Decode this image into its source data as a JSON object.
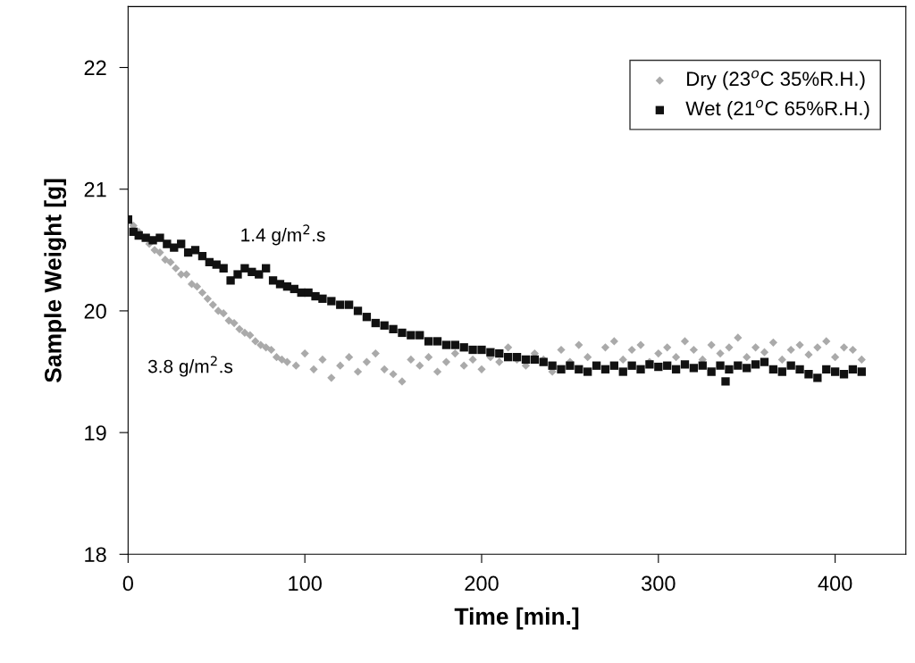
{
  "chart_data": {
    "type": "scatter",
    "xlabel": "Time [min.]",
    "ylabel": "Sample Weight [g]",
    "xlim": [
      0,
      440
    ],
    "xticks": [
      0,
      100,
      200,
      300,
      400
    ],
    "ylim": [
      18,
      22.5
    ],
    "yticks": [
      18,
      19,
      20,
      21,
      22
    ],
    "grid": false,
    "legend": "top right",
    "annotations": [
      "1.4 g/m$^{2}$.s",
      "3.8 g/m$^{2}$.s"
    ],
    "series": [
      {
        "name": "Dry (23$^{o}$C 35%R.H.)",
        "color": "#aaaaaa",
        "marker": "diamond",
        "x": [
          3,
          6,
          12,
          15,
          18,
          21,
          24,
          27,
          30,
          33,
          36,
          39,
          42,
          45,
          48,
          51,
          54,
          57,
          60,
          63,
          66,
          69,
          72,
          75,
          78,
          81,
          84,
          87,
          90,
          95,
          100,
          105,
          110,
          115,
          120,
          125,
          130,
          135,
          140,
          145,
          150,
          155,
          160,
          165,
          170,
          175,
          180,
          185,
          190,
          195,
          200,
          205,
          210,
          215,
          220,
          225,
          230,
          235,
          240,
          245,
          250,
          255,
          260,
          270,
          275,
          280,
          285,
          290,
          295,
          300,
          305,
          310,
          315,
          320,
          325,
          330,
          335,
          340,
          345,
          350,
          355,
          360,
          365,
          370,
          375,
          380,
          385,
          390,
          395,
          400,
          405,
          410,
          415
        ],
        "values": [
          20.7,
          20.65,
          20.55,
          20.5,
          20.48,
          20.42,
          20.4,
          20.35,
          20.3,
          20.3,
          20.22,
          20.2,
          20.15,
          20.1,
          20.05,
          20.0,
          19.98,
          19.92,
          19.9,
          19.85,
          19.82,
          19.8,
          19.75,
          19.72,
          19.7,
          19.68,
          19.62,
          19.6,
          19.58,
          19.55,
          19.65,
          19.52,
          19.6,
          19.45,
          19.55,
          19.62,
          19.5,
          19.58,
          19.65,
          19.52,
          19.48,
          19.42,
          19.6,
          19.55,
          19.62,
          19.5,
          19.58,
          19.65,
          19.55,
          19.6,
          19.52,
          19.62,
          19.58,
          19.7,
          19.6,
          19.55,
          19.65,
          19.6,
          19.5,
          19.68,
          19.58,
          19.72,
          19.62,
          19.7,
          19.75,
          19.6,
          19.68,
          19.72,
          19.58,
          19.65,
          19.7,
          19.62,
          19.75,
          19.68,
          19.6,
          19.72,
          19.65,
          19.7,
          19.78,
          19.62,
          19.7,
          19.66,
          19.74,
          19.6,
          19.68,
          19.72,
          19.64,
          19.7,
          19.75,
          19.62,
          19.7,
          19.68,
          19.6
        ]
      },
      {
        "name": "Wet (21$^{o}$C 65%R.H.)",
        "color": "#111111",
        "marker": "square",
        "x": [
          0,
          3,
          6,
          10,
          14,
          18,
          22,
          26,
          30,
          34,
          38,
          42,
          46,
          50,
          54,
          58,
          62,
          66,
          70,
          74,
          78,
          82,
          86,
          90,
          94,
          98,
          102,
          106,
          110,
          115,
          120,
          125,
          130,
          135,
          140,
          145,
          150,
          155,
          160,
          165,
          170,
          175,
          180,
          185,
          190,
          195,
          200,
          205,
          210,
          215,
          220,
          225,
          230,
          235,
          240,
          245,
          250,
          255,
          260,
          265,
          270,
          275,
          280,
          285,
          290,
          295,
          300,
          305,
          310,
          315,
          320,
          325,
          330,
          335,
          338,
          340,
          345,
          350,
          355,
          360,
          365,
          370,
          375,
          380,
          385,
          390,
          395,
          400,
          405,
          410,
          415
        ],
        "values": [
          20.75,
          20.65,
          20.62,
          20.6,
          20.58,
          20.6,
          20.55,
          20.52,
          20.55,
          20.48,
          20.5,
          20.45,
          20.4,
          20.38,
          20.35,
          20.25,
          20.3,
          20.35,
          20.32,
          20.3,
          20.35,
          20.25,
          20.22,
          20.2,
          20.18,
          20.15,
          20.15,
          20.12,
          20.1,
          20.08,
          20.05,
          20.05,
          20.0,
          19.95,
          19.9,
          19.88,
          19.85,
          19.82,
          19.8,
          19.8,
          19.75,
          19.75,
          19.72,
          19.72,
          19.7,
          19.68,
          19.68,
          19.66,
          19.65,
          19.62,
          19.62,
          19.6,
          19.6,
          19.58,
          19.55,
          19.52,
          19.55,
          19.52,
          19.5,
          19.55,
          19.52,
          19.55,
          19.5,
          19.55,
          19.52,
          19.56,
          19.54,
          19.55,
          19.52,
          19.56,
          19.53,
          19.55,
          19.5,
          19.55,
          19.42,
          19.52,
          19.55,
          19.53,
          19.56,
          19.58,
          19.52,
          19.5,
          19.55,
          19.52,
          19.48,
          19.45,
          19.52,
          19.5,
          19.48,
          19.52,
          19.5
        ]
      }
    ]
  }
}
